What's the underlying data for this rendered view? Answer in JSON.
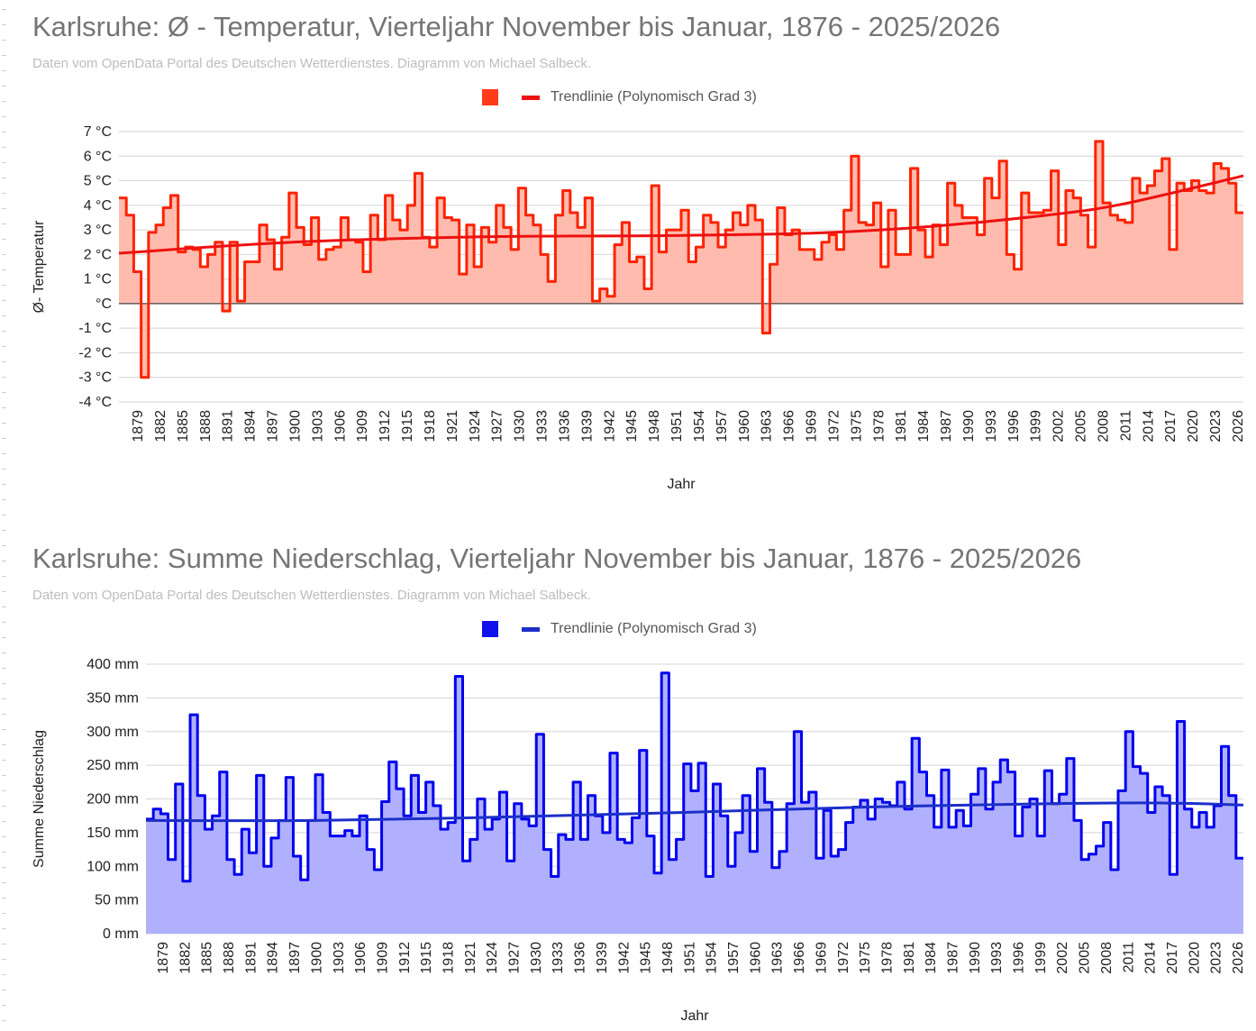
{
  "charts": [
    {
      "title": "Karlsruhe: Ø - Temperatur,  Vierteljahr November bis Januar, 1876 - 2025/2026",
      "subtitle": "Daten vom OpenData Portal des Deutschen Wetterdienstes. Diagramm von Michael Salbeck.",
      "legend_trend": "Trendlinie (Polynomisch Grad 3)",
      "xlabel": "Jahr",
      "ylabel": "Ø- Temperatur",
      "color_line": "#ff2200",
      "color_fill": "#ffbcae",
      "color_trend": "#ee1111",
      "color_swatch": "#ff3b1a",
      "ytick_labels": [
        "7 °C",
        "6 °C",
        "5 °C",
        "4 °C",
        "3 °C",
        "2 °C",
        "1 °C",
        "°C",
        "-1 °C",
        "-2 °C",
        "-3 °C",
        "-4 °C"
      ],
      "xtick_labels": [
        "1879",
        "1882",
        "1885",
        "1888",
        "1891",
        "1894",
        "1897",
        "1900",
        "1903",
        "1906",
        "1909",
        "1912",
        "1915",
        "1918",
        "1921",
        "1924",
        "1927",
        "1930",
        "1933",
        "1936",
        "1939",
        "1942",
        "1945",
        "1948",
        "1951",
        "1954",
        "1957",
        "1960",
        "1963",
        "1966",
        "1969",
        "1972",
        "1975",
        "1978",
        "1981",
        "1984",
        "1987",
        "1990",
        "1993",
        "1996",
        "1999",
        "2002",
        "2005",
        "2008",
        "2011",
        "2014",
        "2017",
        "2020",
        "2023",
        "2026"
      ]
    },
    {
      "title": "Karlsruhe: Summe Niederschlag,  Vierteljahr November bis Januar, 1876 - 2025/2026",
      "subtitle": "Daten vom OpenData Portal des Deutschen Wetterdienstes. Diagramm von Michael Salbeck.",
      "legend_trend": "Trendlinie (Polynomisch Grad 3)",
      "xlabel": "Jahr",
      "ylabel": "Summe Niederschlag",
      "color_line": "#0000ee",
      "color_fill": "#b0b0ff",
      "color_trend": "#1c2fc8",
      "color_swatch": "#1111ee",
      "ytick_labels": [
        "400 mm",
        "350 mm",
        "300 mm",
        "250 mm",
        "200 mm",
        "150 mm",
        "100 mm",
        "50 mm",
        "0 mm"
      ],
      "xtick_labels": [
        "1879",
        "1882",
        "1885",
        "1888",
        "1891",
        "1894",
        "1897",
        "1900",
        "1903",
        "1906",
        "1909",
        "1912",
        "1915",
        "1918",
        "1921",
        "1924",
        "1927",
        "1930",
        "1933",
        "1936",
        "1939",
        "1942",
        "1945",
        "1948",
        "1951",
        "1954",
        "1957",
        "1960",
        "1963",
        "1966",
        "1969",
        "1972",
        "1975",
        "1978",
        "1981",
        "1984",
        "1987",
        "1990",
        "1993",
        "1996",
        "1999",
        "2002",
        "2005",
        "2008",
        "2011",
        "2014",
        "2017",
        "2020",
        "2023",
        "2026"
      ]
    }
  ],
  "chart_data": [
    {
      "type": "area",
      "title": "Karlsruhe: Ø - Temperatur,  Vierteljahr November bis Januar, 1876 - 2025/2026",
      "xlabel": "Jahr",
      "ylabel": "Ø- Temperatur",
      "unit": "°C",
      "ylim": [
        -4,
        7
      ],
      "xlim": [
        1877,
        2026
      ],
      "grid": true,
      "legend": "top-center",
      "x_start": 1877,
      "series": [
        {
          "values": [
            4.3,
            3.6,
            1.3,
            -3.0,
            2.9,
            3.2,
            3.9,
            4.4,
            2.1,
            2.3,
            2.2,
            1.5,
            2.0,
            2.5,
            -0.3,
            2.5,
            0.1,
            1.7,
            1.7,
            3.2,
            2.6,
            1.4,
            2.7,
            4.5,
            3.1,
            2.4,
            3.5,
            1.8,
            2.2,
            2.3,
            3.5,
            2.6,
            2.5,
            1.3,
            3.6,
            2.6,
            4.4,
            3.4,
            3.0,
            4.0,
            5.3,
            2.7,
            2.3,
            4.3,
            3.5,
            3.4,
            1.2,
            3.2,
            1.5,
            3.1,
            2.5,
            4.0,
            3.1,
            2.2,
            4.7,
            3.6,
            3.2,
            2.0,
            0.9,
            3.6,
            4.6,
            3.7,
            3.1,
            4.3,
            0.1,
            0.6,
            0.3,
            2.4,
            3.3,
            1.7,
            1.9,
            0.6,
            4.8,
            2.1,
            3.0,
            3.0,
            3.8,
            1.7,
            2.3,
            3.6,
            3.3,
            2.3,
            3.0,
            3.7,
            3.2,
            4.0,
            3.4,
            -1.2,
            1.6,
            3.9,
            2.8,
            3.0,
            2.2,
            2.2,
            1.8,
            2.5,
            2.8,
            2.2,
            3.8,
            6.0,
            3.3,
            3.2,
            4.1,
            1.5,
            3.8,
            2.0,
            2.0,
            5.5,
            3.0,
            1.9,
            3.2,
            2.4,
            4.9,
            4.0,
            3.5,
            3.5,
            2.8,
            5.1,
            4.3,
            5.8,
            2.0,
            1.4,
            4.5,
            3.7,
            3.7,
            3.8,
            5.4,
            2.4,
            4.6,
            4.3,
            3.6,
            2.3,
            6.6,
            4.1,
            3.6,
            3.4,
            3.3,
            5.1,
            4.5,
            4.8,
            5.4,
            5.9,
            2.2,
            4.9,
            4.6,
            5.0,
            4.6,
            4.5,
            5.7,
            5.5,
            4.9,
            3.7
          ]
        },
        {
          "name": "Trendlinie (Polynomisch Grad 3)",
          "x": [
            1877,
            1900,
            1925,
            1950,
            1970,
            1985,
            2000,
            2010,
            2026
          ],
          "values": [
            2.05,
            2.5,
            2.72,
            2.77,
            2.88,
            3.15,
            3.6,
            4.05,
            5.2
          ]
        }
      ]
    },
    {
      "type": "area",
      "title": "Karlsruhe: Summe Niederschlag,  Vierteljahr November bis Januar, 1876 - 2025/2026",
      "xlabel": "Jahr",
      "ylabel": "Summe Niederschlag",
      "unit": "mm",
      "ylim": [
        0,
        400
      ],
      "xlim": [
        1877,
        2026
      ],
      "grid": true,
      "legend": "top-center",
      "x_start": 1877,
      "series": [
        {
          "values": [
            170,
            185,
            178,
            110,
            222,
            78,
            325,
            205,
            155,
            175,
            240,
            110,
            88,
            155,
            120,
            235,
            100,
            142,
            168,
            232,
            115,
            80,
            168,
            236,
            180,
            145,
            145,
            153,
            145,
            175,
            125,
            95,
            196,
            255,
            215,
            175,
            235,
            180,
            225,
            190,
            155,
            165,
            382,
            108,
            140,
            200,
            155,
            170,
            210,
            108,
            193,
            170,
            160,
            296,
            125,
            85,
            147,
            140,
            225,
            140,
            205,
            175,
            150,
            268,
            140,
            135,
            172,
            272,
            145,
            90,
            387,
            110,
            140,
            252,
            212,
            253,
            85,
            222,
            175,
            100,
            150,
            205,
            122,
            245,
            195,
            98,
            122,
            193,
            300,
            195,
            210,
            112,
            183,
            115,
            125,
            165,
            188,
            198,
            170,
            200,
            195,
            190,
            225,
            185,
            290,
            240,
            205,
            158,
            243,
            158,
            183,
            160,
            207,
            245,
            185,
            225,
            258,
            240,
            145,
            188,
            200,
            145,
            242,
            193,
            207,
            260,
            168,
            110,
            118,
            130,
            165,
            95,
            212,
            300,
            248,
            238,
            180,
            218,
            205,
            88,
            315,
            185,
            158,
            180,
            158,
            190,
            278,
            205,
            112
          ]
        },
        {
          "name": "Trendlinie (Polynomisch Grad 3)",
          "x": [
            1877,
            1900,
            1925,
            1950,
            1975,
            2000,
            2015,
            2026
          ],
          "values": [
            168,
            168,
            173,
            180,
            188,
            193,
            194,
            191
          ]
        }
      ]
    }
  ]
}
